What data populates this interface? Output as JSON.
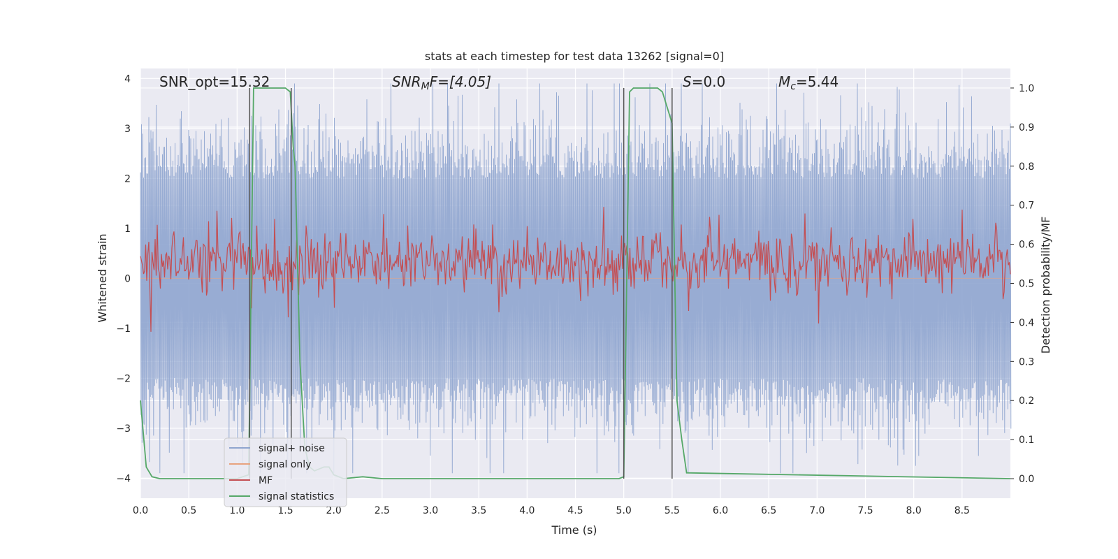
{
  "chart_data": {
    "type": "line",
    "title": "stats at each timestep for test data 13262 [signal=0]",
    "xlabel": "Time (s)",
    "ylabel_left": "Whitened strain",
    "ylabel_right": "Detection probability/MF",
    "xlim": [
      0.0,
      9.0
    ],
    "ylim_left": [
      -4.4,
      4.2
    ],
    "ylim_right": [
      -0.05,
      1.05
    ],
    "x_ticks": [
      "0.0",
      "0.5",
      "1.0",
      "1.5",
      "2.0",
      "2.5",
      "3.0",
      "3.5",
      "4.0",
      "4.5",
      "5.0",
      "5.5",
      "6.0",
      "6.5",
      "7.0",
      "7.5",
      "8.0",
      "8.5"
    ],
    "y_ticks_left": [
      "4",
      "3",
      "2",
      "1",
      "0",
      "−1",
      "−2",
      "−3",
      "−4"
    ],
    "y_ticks_right": [
      "1.0",
      "0.9",
      "0.8",
      "0.7",
      "0.6",
      "0.5",
      "0.4",
      "0.3",
      "0.2",
      "0.1",
      "0.0"
    ],
    "grid": true,
    "legend_position": "lower-left",
    "annotations": {
      "snr_opt": "SNR_opt=15.32",
      "snr_mf_label": "SNR",
      "snr_mf_sub": "M",
      "snr_mf_value": "F=[4.05]",
      "s_label": "S",
      "s_value": "=0.0",
      "mc_label": "M",
      "mc_sub": "c",
      "mc_value": "=5.44"
    },
    "vertical_markers_x": [
      1.13,
      1.56,
      5.0,
      5.5
    ],
    "series": [
      {
        "name": "signal+ noise",
        "color": "#8fa5cf",
        "axis": "left",
        "kind": "noise",
        "amplitude_typical": 2.0,
        "amplitude_max": 3.9
      },
      {
        "name": "signal only",
        "color": "#e8a37e",
        "axis": "left",
        "kind": "flat",
        "values": [
          0.0
        ]
      },
      {
        "name": "MF",
        "color": "#c44e52",
        "axis": "right",
        "kind": "noise",
        "center": 0.555,
        "spread": 0.04
      },
      {
        "name": "signal statistics",
        "color": "#55a868",
        "axis": "right",
        "x": [
          0.0,
          0.06,
          0.12,
          0.2,
          1.0,
          1.12,
          1.17,
          1.2,
          1.5,
          1.55,
          1.58,
          1.6,
          1.65,
          1.7,
          1.75,
          1.8,
          1.9,
          1.95,
          2.0,
          2.1,
          2.3,
          2.5,
          4.95,
          5.0,
          5.06,
          5.1,
          5.35,
          5.4,
          5.5,
          5.55,
          5.6,
          5.65,
          9.0
        ],
        "values": [
          0.2,
          0.03,
          0.005,
          0.0,
          0.0,
          0.01,
          1.0,
          1.0,
          1.0,
          0.99,
          0.85,
          0.8,
          0.3,
          0.08,
          0.03,
          0.02,
          0.03,
          0.03,
          0.01,
          0.0,
          0.005,
          0.0,
          0.0,
          0.005,
          0.99,
          1.0,
          1.0,
          0.99,
          0.91,
          0.2,
          0.1,
          0.015,
          0.0
        ]
      }
    ]
  },
  "legend": {
    "items": [
      {
        "label": "signal+ noise",
        "color": "#8fa5cf"
      },
      {
        "label": "signal only",
        "color": "#e8a37e"
      },
      {
        "label": "MF",
        "color": "#c44e52"
      },
      {
        "label": "signal statistics",
        "color": "#55a868"
      }
    ]
  },
  "colors": {
    "axes_bg": "#eaeaf2",
    "grid": "#ffffff",
    "marker": "#555555"
  }
}
